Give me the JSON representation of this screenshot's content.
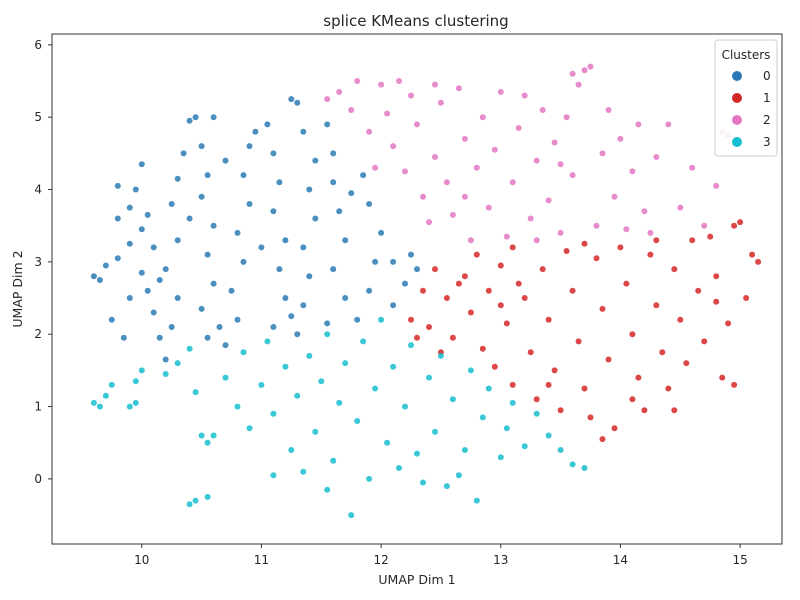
{
  "chart_data": {
    "type": "scatter",
    "title": "splice KMeans clustering",
    "xlabel": "UMAP Dim 1",
    "ylabel": "UMAP Dim 2",
    "xlim": [
      9.25,
      15.35
    ],
    "ylim": [
      -0.9,
      6.15
    ],
    "xticks": [
      10,
      11,
      12,
      13,
      14,
      15
    ],
    "yticks": [
      0,
      1,
      2,
      3,
      4,
      5,
      6
    ],
    "grid": false,
    "legend": {
      "title": "Clusters",
      "placement": "top-right"
    },
    "series": [
      {
        "name": "0",
        "color": "#2c7bb6",
        "points": [
          [
            9.6,
            2.8
          ],
          [
            9.65,
            2.75
          ],
          [
            9.7,
            2.95
          ],
          [
            9.8,
            3.05
          ],
          [
            9.75,
            2.2
          ],
          [
            9.85,
            1.95
          ],
          [
            9.9,
            2.5
          ],
          [
            9.8,
            3.6
          ],
          [
            9.9,
            3.75
          ],
          [
            9.95,
            4.0
          ],
          [
            9.8,
            4.05
          ],
          [
            10.0,
            3.45
          ],
          [
            10.05,
            3.65
          ],
          [
            10.1,
            3.2
          ],
          [
            10.0,
            2.85
          ],
          [
            10.05,
            2.6
          ],
          [
            10.1,
            2.3
          ],
          [
            10.15,
            1.95
          ],
          [
            10.2,
            1.65
          ],
          [
            10.25,
            2.1
          ],
          [
            10.3,
            2.5
          ],
          [
            10.2,
            2.9
          ],
          [
            10.3,
            3.3
          ],
          [
            10.25,
            3.8
          ],
          [
            10.3,
            4.15
          ],
          [
            10.35,
            4.5
          ],
          [
            10.4,
            4.95
          ],
          [
            10.45,
            5.0
          ],
          [
            10.6,
            5.0
          ],
          [
            10.5,
            4.6
          ],
          [
            10.55,
            4.2
          ],
          [
            10.5,
            3.9
          ],
          [
            10.6,
            3.5
          ],
          [
            10.55,
            3.1
          ],
          [
            10.6,
            2.7
          ],
          [
            10.5,
            2.35
          ],
          [
            10.55,
            1.95
          ],
          [
            10.7,
            1.85
          ],
          [
            10.8,
            2.2
          ],
          [
            10.75,
            2.6
          ],
          [
            10.85,
            3.0
          ],
          [
            10.8,
            3.4
          ],
          [
            10.9,
            3.8
          ],
          [
            10.85,
            4.2
          ],
          [
            10.9,
            4.6
          ],
          [
            10.95,
            4.8
          ],
          [
            11.05,
            4.9
          ],
          [
            11.1,
            4.5
          ],
          [
            11.15,
            4.1
          ],
          [
            11.1,
            3.7
          ],
          [
            11.2,
            3.3
          ],
          [
            11.15,
            2.9
          ],
          [
            11.2,
            2.5
          ],
          [
            11.1,
            2.1
          ],
          [
            11.3,
            2.0
          ],
          [
            11.35,
            2.4
          ],
          [
            11.4,
            2.8
          ],
          [
            11.35,
            3.2
          ],
          [
            11.45,
            3.6
          ],
          [
            11.4,
            4.0
          ],
          [
            11.45,
            4.4
          ],
          [
            11.35,
            4.8
          ],
          [
            11.3,
            5.2
          ],
          [
            11.25,
            5.25
          ],
          [
            11.55,
            4.9
          ],
          [
            11.6,
            4.5
          ],
          [
            11.6,
            4.1
          ],
          [
            11.65,
            3.7
          ],
          [
            11.7,
            3.3
          ],
          [
            11.6,
            2.9
          ],
          [
            11.7,
            2.5
          ],
          [
            11.55,
            2.15
          ],
          [
            11.8,
            2.2
          ],
          [
            11.9,
            2.6
          ],
          [
            11.95,
            3.0
          ],
          [
            12.0,
            3.4
          ],
          [
            11.9,
            3.8
          ],
          [
            11.85,
            4.2
          ],
          [
            12.1,
            3.0
          ],
          [
            12.2,
            2.7
          ],
          [
            12.25,
            3.1
          ],
          [
            12.1,
            2.4
          ],
          [
            12.3,
            2.9
          ],
          [
            10.0,
            4.35
          ],
          [
            9.9,
            3.25
          ],
          [
            10.4,
            3.6
          ],
          [
            10.7,
            4.4
          ],
          [
            11.0,
            3.2
          ],
          [
            11.25,
            2.25
          ],
          [
            11.75,
            3.95
          ],
          [
            10.15,
            2.75
          ],
          [
            10.65,
            2.1
          ]
        ]
      },
      {
        "name": "1",
        "color": "#d62728",
        "points": [
          [
            12.25,
            2.2
          ],
          [
            12.35,
            2.6
          ],
          [
            12.4,
            2.1
          ],
          [
            12.45,
            2.9
          ],
          [
            12.55,
            2.5
          ],
          [
            12.6,
            1.95
          ],
          [
            12.7,
            2.8
          ],
          [
            12.75,
            2.3
          ],
          [
            12.8,
            3.1
          ],
          [
            12.85,
            1.8
          ],
          [
            12.9,
            2.6
          ],
          [
            12.95,
            1.55
          ],
          [
            13.0,
            2.95
          ],
          [
            13.05,
            2.15
          ],
          [
            13.1,
            1.3
          ],
          [
            13.1,
            3.2
          ],
          [
            13.2,
            2.5
          ],
          [
            13.25,
            1.75
          ],
          [
            13.3,
            1.1
          ],
          [
            13.35,
            2.9
          ],
          [
            13.4,
            2.2
          ],
          [
            13.45,
            1.5
          ],
          [
            13.5,
            0.95
          ],
          [
            13.55,
            3.15
          ],
          [
            13.6,
            2.6
          ],
          [
            13.65,
            1.9
          ],
          [
            13.7,
            1.25
          ],
          [
            13.75,
            0.85
          ],
          [
            13.8,
            3.05
          ],
          [
            13.85,
            2.35
          ],
          [
            13.9,
            1.65
          ],
          [
            13.95,
            0.7
          ],
          [
            14.0,
            3.2
          ],
          [
            14.05,
            2.7
          ],
          [
            14.1,
            2.0
          ],
          [
            14.15,
            1.4
          ],
          [
            14.2,
            0.95
          ],
          [
            14.25,
            3.1
          ],
          [
            14.3,
            2.4
          ],
          [
            14.35,
            1.75
          ],
          [
            14.4,
            1.25
          ],
          [
            14.45,
            2.9
          ],
          [
            14.5,
            2.2
          ],
          [
            14.55,
            1.6
          ],
          [
            14.6,
            3.3
          ],
          [
            14.65,
            2.6
          ],
          [
            14.7,
            1.9
          ],
          [
            14.75,
            3.35
          ],
          [
            14.8,
            2.8
          ],
          [
            14.85,
            1.4
          ],
          [
            14.9,
            2.15
          ],
          [
            14.95,
            3.5
          ],
          [
            15.0,
            3.55
          ],
          [
            15.05,
            2.5
          ],
          [
            15.1,
            3.1
          ],
          [
            15.15,
            3.0
          ],
          [
            14.95,
            1.3
          ],
          [
            14.3,
            3.3
          ],
          [
            13.7,
            3.25
          ],
          [
            13.15,
            2.7
          ],
          [
            12.65,
            2.7
          ],
          [
            12.5,
            1.75
          ],
          [
            13.85,
            0.55
          ],
          [
            14.45,
            0.95
          ],
          [
            14.8,
            2.45
          ],
          [
            14.1,
            1.1
          ],
          [
            13.4,
            1.3
          ],
          [
            13.0,
            2.4
          ],
          [
            12.3,
            1.95
          ]
        ]
      },
      {
        "name": "2",
        "color": "#e377c2",
        "points": [
          [
            11.55,
            5.25
          ],
          [
            11.65,
            5.35
          ],
          [
            11.8,
            5.5
          ],
          [
            11.75,
            5.1
          ],
          [
            11.9,
            4.8
          ],
          [
            12.0,
            5.45
          ],
          [
            12.05,
            5.05
          ],
          [
            12.1,
            4.6
          ],
          [
            12.2,
            4.25
          ],
          [
            12.25,
            5.3
          ],
          [
            12.3,
            4.9
          ],
          [
            12.35,
            3.9
          ],
          [
            12.4,
            3.55
          ],
          [
            12.45,
            4.45
          ],
          [
            12.5,
            5.2
          ],
          [
            12.55,
            4.1
          ],
          [
            12.6,
            3.65
          ],
          [
            12.65,
            5.4
          ],
          [
            12.7,
            4.7
          ],
          [
            12.75,
            3.3
          ],
          [
            12.8,
            4.3
          ],
          [
            12.85,
            5.0
          ],
          [
            12.9,
            3.75
          ],
          [
            12.95,
            4.55
          ],
          [
            13.0,
            5.35
          ],
          [
            13.05,
            3.35
          ],
          [
            13.1,
            4.1
          ],
          [
            13.15,
            4.85
          ],
          [
            13.2,
            5.3
          ],
          [
            13.25,
            3.6
          ],
          [
            13.3,
            4.4
          ],
          [
            13.35,
            5.1
          ],
          [
            13.4,
            3.85
          ],
          [
            13.45,
            4.65
          ],
          [
            13.5,
            3.4
          ],
          [
            13.55,
            5.0
          ],
          [
            13.6,
            4.2
          ],
          [
            13.65,
            5.45
          ],
          [
            13.7,
            5.65
          ],
          [
            13.75,
            5.7
          ],
          [
            13.8,
            3.5
          ],
          [
            13.85,
            4.5
          ],
          [
            13.9,
            5.1
          ],
          [
            13.95,
            3.9
          ],
          [
            14.0,
            4.7
          ],
          [
            14.05,
            3.45
          ],
          [
            14.1,
            4.25
          ],
          [
            14.15,
            4.9
          ],
          [
            14.2,
            3.7
          ],
          [
            14.3,
            4.45
          ],
          [
            14.4,
            4.9
          ],
          [
            14.5,
            3.75
          ],
          [
            14.6,
            4.3
          ],
          [
            14.7,
            3.5
          ],
          [
            14.8,
            4.05
          ],
          [
            14.85,
            4.8
          ],
          [
            14.9,
            4.75
          ],
          [
            13.6,
            5.6
          ],
          [
            12.15,
            5.5
          ],
          [
            11.95,
            4.3
          ],
          [
            12.7,
            3.9
          ],
          [
            13.3,
            3.3
          ],
          [
            14.25,
            3.4
          ],
          [
            12.45,
            5.45
          ],
          [
            13.5,
            4.35
          ]
        ]
      },
      {
        "name": "3",
        "color": "#17becf",
        "points": [
          [
            9.6,
            1.05
          ],
          [
            9.65,
            1.0
          ],
          [
            9.7,
            1.15
          ],
          [
            9.75,
            1.3
          ],
          [
            9.9,
            1.0
          ],
          [
            9.95,
            1.05
          ],
          [
            10.0,
            1.5
          ],
          [
            10.2,
            1.45
          ],
          [
            10.3,
            1.6
          ],
          [
            10.4,
            1.8
          ],
          [
            10.45,
            1.2
          ],
          [
            10.5,
            0.6
          ],
          [
            10.55,
            0.5
          ],
          [
            10.6,
            0.6
          ],
          [
            10.7,
            1.4
          ],
          [
            10.8,
            1.0
          ],
          [
            10.85,
            1.75
          ],
          [
            10.9,
            0.7
          ],
          [
            11.0,
            1.3
          ],
          [
            11.05,
            1.9
          ],
          [
            11.1,
            0.9
          ],
          [
            11.2,
            1.55
          ],
          [
            11.25,
            0.4
          ],
          [
            11.3,
            1.15
          ],
          [
            11.35,
            0.1
          ],
          [
            11.4,
            1.7
          ],
          [
            11.45,
            0.65
          ],
          [
            11.5,
            1.35
          ],
          [
            11.55,
            2.0
          ],
          [
            11.6,
            0.25
          ],
          [
            11.65,
            1.05
          ],
          [
            11.7,
            1.6
          ],
          [
            11.75,
            -0.5
          ],
          [
            11.8,
            0.8
          ],
          [
            11.85,
            1.9
          ],
          [
            11.9,
            0.0
          ],
          [
            11.95,
            1.25
          ],
          [
            12.0,
            2.2
          ],
          [
            12.05,
            0.5
          ],
          [
            12.1,
            1.55
          ],
          [
            12.15,
            0.15
          ],
          [
            12.2,
            1.0
          ],
          [
            12.25,
            1.85
          ],
          [
            12.3,
            0.35
          ],
          [
            12.4,
            1.4
          ],
          [
            12.45,
            0.65
          ],
          [
            12.5,
            1.7
          ],
          [
            12.55,
            -0.1
          ],
          [
            12.6,
            1.1
          ],
          [
            12.7,
            0.4
          ],
          [
            12.75,
            1.5
          ],
          [
            12.8,
            -0.3
          ],
          [
            12.85,
            0.85
          ],
          [
            12.9,
            1.25
          ],
          [
            13.0,
            0.3
          ],
          [
            13.05,
            0.7
          ],
          [
            13.1,
            1.05
          ],
          [
            13.2,
            0.45
          ],
          [
            13.3,
            0.9
          ],
          [
            13.4,
            0.6
          ],
          [
            13.5,
            0.4
          ],
          [
            13.6,
            0.2
          ],
          [
            13.7,
            0.15
          ],
          [
            10.4,
            -0.35
          ],
          [
            10.45,
            -0.3
          ],
          [
            10.55,
            -0.25
          ],
          [
            9.95,
            1.35
          ],
          [
            11.1,
            0.05
          ],
          [
            11.55,
            -0.15
          ],
          [
            12.35,
            -0.05
          ],
          [
            12.65,
            0.05
          ]
        ]
      }
    ]
  }
}
